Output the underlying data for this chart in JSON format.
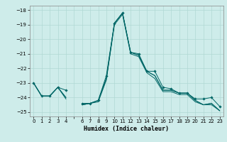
{
  "xlabel": "Humidex (Indice chaleur)",
  "background_color": "#ceecea",
  "grid_color": "#b0d8d4",
  "line_color": "#006666",
  "xlim": [
    -0.5,
    23.5
  ],
  "ylim": [
    -25.3,
    -17.7
  ],
  "yticks": [
    -25,
    -24,
    -23,
    -22,
    -21,
    -20,
    -19,
    -18
  ],
  "xticks": [
    0,
    1,
    2,
    3,
    4,
    5,
    6,
    7,
    8,
    9,
    10,
    11,
    12,
    13,
    14,
    15,
    16,
    17,
    18,
    19,
    20,
    21,
    22,
    23
  ],
  "xtick_labels": [
    "0",
    "1",
    "2",
    "3",
    "4",
    "",
    "6",
    "7",
    "8",
    "9",
    "10",
    "11",
    "12",
    "13",
    "14",
    "15",
    "16",
    "17",
    "18",
    "19",
    "20",
    "21",
    "22",
    "23"
  ],
  "s1": [
    -23.0,
    -23.9,
    -23.9,
    -23.3,
    -23.5,
    null,
    -24.4,
    -24.4,
    -24.2,
    -22.5,
    -18.9,
    -18.2,
    -20.9,
    -21.0,
    -22.2,
    -22.2,
    -23.3,
    -23.4,
    -23.7,
    -23.7,
    -24.1,
    -24.1,
    -24.0,
    -24.6
  ],
  "s2": [
    -23.0,
    -23.9,
    -23.9,
    -23.3,
    -24.0,
    null,
    -24.5,
    -24.4,
    -24.2,
    -22.7,
    -18.9,
    -18.2,
    -20.9,
    -21.1,
    -22.2,
    -22.5,
    -23.5,
    -23.5,
    -23.7,
    -23.7,
    -24.2,
    -24.5,
    -24.4,
    -24.9
  ],
  "s3": [
    -23.0,
    -23.9,
    -23.9,
    -23.3,
    -24.0,
    null,
    -24.5,
    -24.4,
    -24.2,
    -22.7,
    -18.9,
    -18.2,
    -20.9,
    -21.1,
    -22.2,
    -22.5,
    -23.5,
    -23.5,
    -23.7,
    -23.7,
    -24.2,
    -24.5,
    -24.4,
    -24.9
  ],
  "s4": [
    -23.0,
    -23.9,
    -23.9,
    -23.3,
    -24.1,
    null,
    -24.5,
    -24.4,
    -24.3,
    -22.8,
    -19.0,
    -18.3,
    -21.0,
    -21.2,
    -22.3,
    -22.7,
    -23.6,
    -23.6,
    -23.8,
    -23.8,
    -24.3,
    -24.5,
    -24.5,
    -24.9
  ]
}
